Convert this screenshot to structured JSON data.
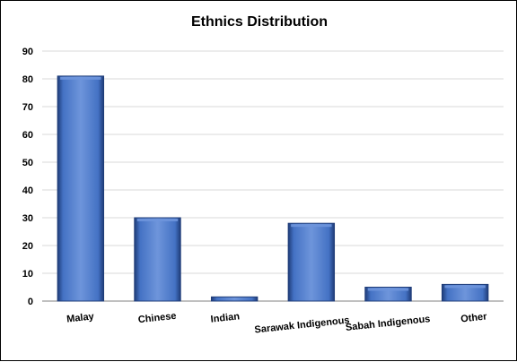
{
  "chart_data": {
    "type": "bar",
    "title": "Ethnics Distribution",
    "xlabel": "",
    "ylabel": "",
    "categories": [
      "Malay",
      "Chinese",
      "Indian",
      "Sarawak Indigenous",
      "Sabah Indigenous",
      "Other"
    ],
    "values": [
      81,
      30,
      1.5,
      28,
      5,
      6
    ],
    "ylim": [
      0,
      90
    ],
    "yticks": [
      0,
      10,
      20,
      30,
      40,
      50,
      60,
      70,
      80,
      90
    ],
    "grid": true,
    "legend": "none",
    "colors": {
      "bar": "#4472C4",
      "bar_light": "#6E95DB",
      "bar_dark": "#1F3C78",
      "grid": "#D9D9D9",
      "axis": "#808080"
    }
  }
}
